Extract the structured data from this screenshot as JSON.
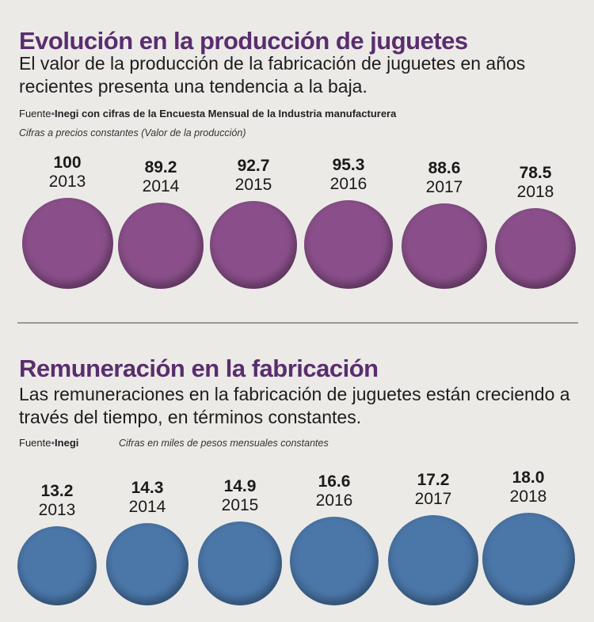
{
  "chart_data": [
    {
      "type": "bubble",
      "title": "Evolución en la producción de juguetes",
      "subtitle": "El valor de la producción de la fabricación de juguetes en años recientes presenta una tendencia a la baja.",
      "source_label": "Fuente",
      "source": "Inegi con cifras de la Encuesta Mensual de la Industria manufacturera",
      "note": "Cifras a precios constantes (Valor de la producción)",
      "categories": [
        "2013",
        "2014",
        "2015",
        "2016",
        "2017",
        "2018"
      ],
      "values": [
        100,
        89.2,
        92.7,
        95.3,
        88.6,
        78.5
      ],
      "value_labels": [
        "100",
        "89.2",
        "92.7",
        "95.3",
        "88.6",
        "78.5"
      ],
      "color": "#8a4f8a"
    },
    {
      "type": "bubble",
      "title": "Remuneración en la fabricación",
      "subtitle": "Las remuneraciones en la fabricación de juguetes están creciendo a través del tiempo, en términos constantes.",
      "source_label": "Fuente",
      "source": "Inegi",
      "note": "Cifras en miles de pesos mensuales constantes",
      "categories": [
        "2013",
        "2014",
        "2015",
        "2016",
        "2017",
        "2018"
      ],
      "values": [
        13.2,
        14.3,
        14.9,
        16.6,
        17.2,
        18.0
      ],
      "value_labels": [
        "13.2",
        "14.3",
        "14.9",
        "16.6",
        "17.2",
        "18.0"
      ],
      "color": "#4a76a8"
    }
  ]
}
